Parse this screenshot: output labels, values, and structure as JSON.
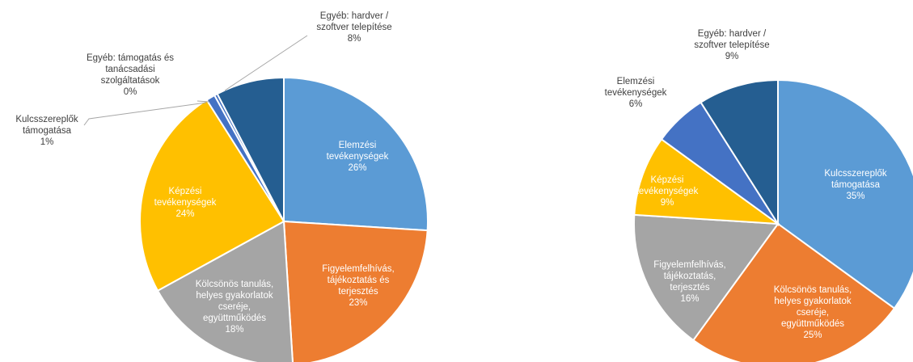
{
  "colors": {
    "blue": "#5b9bd5",
    "orange": "#ed7d31",
    "gray": "#a5a5a5",
    "gold": "#ffc000",
    "mid_blue": "#4472c4",
    "dark_blue": "#255e91",
    "label_dark": "#404040",
    "label_light": "#ffffff"
  },
  "chart_data": [
    {
      "type": "pie",
      "start_angle_deg": 0,
      "direction": "clockwise",
      "slices": [
        {
          "lines": [
            "Elemzési",
            "tevékenységek",
            "26%"
          ],
          "value": 26,
          "color": "blue",
          "label_inside": true
        },
        {
          "lines": [
            "Figyelemfelhívás,",
            "tájékoztatás és",
            "terjesztés",
            "23%"
          ],
          "value": 23,
          "color": "orange",
          "label_inside": true
        },
        {
          "lines": [
            "Kölcsönös tanulás,",
            "helyes gyakorlatok",
            "cseréje,",
            "együttműködés",
            "18%"
          ],
          "value": 18,
          "color": "gray",
          "label_inside": true
        },
        {
          "lines": [
            "Képzési",
            "tevékenységek",
            "24%"
          ],
          "value": 24,
          "color": "gold",
          "label_inside": true
        },
        {
          "lines": [
            "Kulcsszereplők",
            "támogatása",
            "1%"
          ],
          "value": 1,
          "color": "mid_blue",
          "label_inside": false
        },
        {
          "lines": [
            "Egyéb: támogatás és",
            "tanácsadási",
            "szolgáltatások",
            "0%"
          ],
          "value": 0.35,
          "color": "mid_blue",
          "label_inside": false
        },
        {
          "lines": [
            "Egyéb: hardver /",
            "szoftver telepítése",
            "8%"
          ],
          "value": 7.65,
          "color": "dark_blue",
          "label_inside": false
        }
      ]
    },
    {
      "type": "pie",
      "start_angle_deg": 0,
      "direction": "clockwise",
      "slices": [
        {
          "lines": [
            "Kulcsszereplők",
            "támogatása",
            "35%"
          ],
          "value": 35,
          "color": "blue",
          "label_inside": true
        },
        {
          "lines": [
            "Kölcsönös tanulás,",
            "helyes gyakorlatok",
            "cseréje,",
            "együttműködés",
            "25%"
          ],
          "value": 25,
          "color": "orange",
          "label_inside": true
        },
        {
          "lines": [
            "Figyelemfelhívás,",
            "tájékoztatás,",
            "terjesztés",
            "16%"
          ],
          "value": 16,
          "color": "gray",
          "label_inside": true
        },
        {
          "lines": [
            "Képzési",
            "tevékenységek",
            "9%"
          ],
          "value": 9,
          "color": "gold",
          "label_inside": true
        },
        {
          "lines": [
            "Elemzési",
            "tevékenységek",
            "6%"
          ],
          "value": 6,
          "color": "mid_blue",
          "label_inside": false
        },
        {
          "lines": [
            "Egyéb: hardver /",
            "szoftver telepítése",
            "9%"
          ],
          "value": 9,
          "color": "dark_blue",
          "label_inside": false
        }
      ]
    }
  ]
}
